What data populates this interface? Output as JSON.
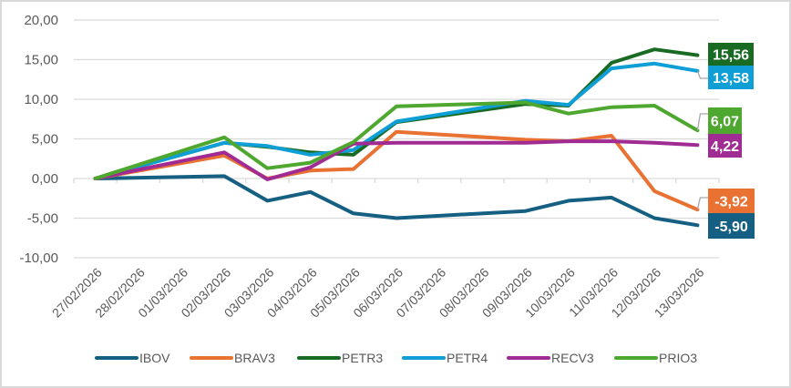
{
  "chart_data": {
    "type": "line",
    "title": "",
    "xlabel": "",
    "ylabel": "",
    "ylim": [
      -10,
      20
    ],
    "yticks": [
      20,
      15,
      10,
      5,
      0,
      -5,
      -10
    ],
    "ytick_labels": [
      "20,00",
      "15,00",
      "10,00",
      "5,00",
      "0,00",
      "-5,00",
      "-10,00"
    ],
    "grid": true,
    "legend_position": "bottom",
    "categories": [
      "27/02/2026",
      "28/02/2026",
      "01/03/2026",
      "02/03/2026",
      "03/03/2026",
      "04/03/2026",
      "05/03/2026",
      "06/03/2026",
      "07/03/2026",
      "08/03/2026",
      "09/03/2026",
      "10/03/2026",
      "11/03/2026",
      "12/03/2026",
      "13/03/2026"
    ],
    "series": [
      {
        "name": "IBOV",
        "color": "#156082",
        "values": [
          0,
          null,
          null,
          0.3,
          -2.8,
          -1.7,
          -4.4,
          -5.0,
          null,
          null,
          -4.1,
          -2.8,
          -2.4,
          -5.0,
          -5.9
        ],
        "end_label": "-5,90"
      },
      {
        "name": "BRAV3",
        "color": "#E97132",
        "values": [
          0,
          null,
          null,
          2.9,
          0.0,
          1.0,
          1.2,
          5.9,
          null,
          null,
          4.9,
          4.7,
          5.4,
          -1.6,
          -3.92
        ],
        "end_label": "-3,92"
      },
      {
        "name": "PETR3",
        "color": "#196B24",
        "values": [
          0,
          null,
          null,
          4.5,
          4.0,
          3.3,
          3.0,
          7.1,
          null,
          null,
          9.4,
          9.2,
          14.6,
          16.3,
          15.56
        ],
        "end_label": "15,56"
      },
      {
        "name": "PETR4",
        "color": "#0F9ED5",
        "values": [
          0,
          null,
          null,
          4.5,
          4.1,
          3.0,
          3.6,
          7.2,
          null,
          null,
          9.8,
          9.3,
          13.9,
          14.5,
          13.58
        ],
        "end_label": "13,58"
      },
      {
        "name": "RECV3",
        "color": "#A02B93",
        "values": [
          0,
          null,
          null,
          3.3,
          -0.1,
          1.4,
          4.4,
          4.5,
          null,
          null,
          4.5,
          4.7,
          4.7,
          4.5,
          4.22
        ],
        "end_label": "4,22"
      },
      {
        "name": "PRIO3",
        "color": "#4EA72E",
        "values": [
          0,
          null,
          null,
          5.2,
          1.3,
          2.0,
          4.6,
          9.1,
          null,
          null,
          9.6,
          8.2,
          9.0,
          9.2,
          6.07
        ],
        "end_label": "6,07"
      }
    ]
  }
}
